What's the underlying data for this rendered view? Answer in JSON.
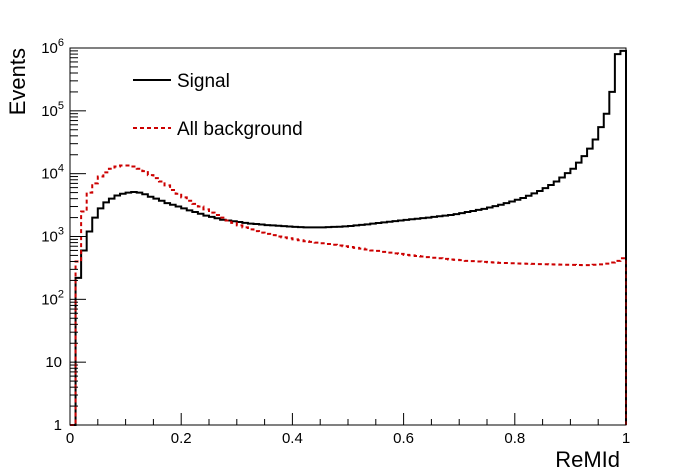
{
  "chart_data": {
    "type": "line",
    "xlabel": "ReMId",
    "ylabel": "Events",
    "xlim": [
      0,
      1
    ],
    "ylim": [
      1,
      1000000
    ],
    "yscale": "log",
    "grid": false,
    "legend_position": "top-left",
    "x_ticks": [
      {
        "v": 0,
        "label": "0"
      },
      {
        "v": 0.2,
        "label": "0.2"
      },
      {
        "v": 0.4,
        "label": "0.4"
      },
      {
        "v": 0.6,
        "label": "0.6"
      },
      {
        "v": 0.8,
        "label": "0.8"
      },
      {
        "v": 1,
        "label": "1"
      }
    ],
    "y_ticks": [
      {
        "v": 1,
        "base": "1",
        "exp": ""
      },
      {
        "v": 10,
        "base": "10",
        "exp": ""
      },
      {
        "v": 100,
        "base": "10",
        "exp": "2"
      },
      {
        "v": 1000,
        "base": "10",
        "exp": "3"
      },
      {
        "v": 10000,
        "base": "10",
        "exp": "4"
      },
      {
        "v": 100000,
        "base": "10",
        "exp": "5"
      },
      {
        "v": 1000000,
        "base": "10",
        "exp": "6"
      }
    ],
    "bin_width": 0.01,
    "series": [
      {
        "name": "Signal",
        "color": "#000000",
        "dash": "solid",
        "x": [
          0.0,
          0.01,
          0.02,
          0.03,
          0.04,
          0.05,
          0.06,
          0.07,
          0.08,
          0.09,
          0.1,
          0.11,
          0.12,
          0.13,
          0.14,
          0.15,
          0.16,
          0.17,
          0.18,
          0.19,
          0.2,
          0.21,
          0.22,
          0.23,
          0.24,
          0.25,
          0.26,
          0.27,
          0.28,
          0.29,
          0.3,
          0.31,
          0.32,
          0.33,
          0.34,
          0.35,
          0.36,
          0.37,
          0.38,
          0.39,
          0.4,
          0.41,
          0.42,
          0.43,
          0.44,
          0.45,
          0.46,
          0.47,
          0.48,
          0.49,
          0.5,
          0.51,
          0.52,
          0.53,
          0.54,
          0.55,
          0.56,
          0.57,
          0.58,
          0.59,
          0.6,
          0.61,
          0.62,
          0.63,
          0.64,
          0.65,
          0.66,
          0.67,
          0.68,
          0.69,
          0.7,
          0.71,
          0.72,
          0.73,
          0.74,
          0.75,
          0.76,
          0.77,
          0.78,
          0.79,
          0.8,
          0.81,
          0.82,
          0.83,
          0.84,
          0.85,
          0.86,
          0.87,
          0.88,
          0.89,
          0.9,
          0.91,
          0.92,
          0.93,
          0.94,
          0.95,
          0.96,
          0.97,
          0.98,
          0.99
        ],
        "values": [
          1,
          220,
          600,
          1200,
          2000,
          2800,
          3500,
          4000,
          4500,
          4800,
          5000,
          5100,
          5000,
          4700,
          4300,
          4000,
          3700,
          3400,
          3200,
          3000,
          2800,
          2600,
          2450,
          2300,
          2150,
          2050,
          1950,
          1850,
          1800,
          1750,
          1700,
          1650,
          1600,
          1580,
          1550,
          1520,
          1500,
          1480,
          1460,
          1440,
          1420,
          1410,
          1400,
          1400,
          1400,
          1400,
          1410,
          1420,
          1430,
          1450,
          1470,
          1500,
          1530,
          1560,
          1600,
          1640,
          1680,
          1720,
          1760,
          1800,
          1840,
          1880,
          1920,
          1960,
          2000,
          2050,
          2100,
          2150,
          2200,
          2270,
          2350,
          2450,
          2550,
          2650,
          2750,
          2900,
          3050,
          3200,
          3400,
          3600,
          3850,
          4100,
          4450,
          4850,
          5300,
          5900,
          6600,
          7500,
          8700,
          10200,
          12000,
          15000,
          19000,
          25000,
          35000,
          55000,
          90000,
          200000,
          800000,
          900000
        ]
      },
      {
        "name": "All background",
        "color": "#cc0000",
        "dash": "dashed",
        "x": [
          0.0,
          0.01,
          0.02,
          0.03,
          0.04,
          0.05,
          0.06,
          0.07,
          0.08,
          0.09,
          0.1,
          0.11,
          0.12,
          0.13,
          0.14,
          0.15,
          0.16,
          0.17,
          0.18,
          0.19,
          0.2,
          0.21,
          0.22,
          0.23,
          0.24,
          0.25,
          0.26,
          0.27,
          0.28,
          0.29,
          0.3,
          0.31,
          0.32,
          0.33,
          0.34,
          0.35,
          0.36,
          0.37,
          0.38,
          0.39,
          0.4,
          0.41,
          0.42,
          0.43,
          0.44,
          0.45,
          0.46,
          0.47,
          0.48,
          0.49,
          0.5,
          0.51,
          0.52,
          0.53,
          0.54,
          0.55,
          0.56,
          0.57,
          0.58,
          0.59,
          0.6,
          0.61,
          0.62,
          0.63,
          0.64,
          0.65,
          0.66,
          0.67,
          0.68,
          0.69,
          0.7,
          0.71,
          0.72,
          0.73,
          0.74,
          0.75,
          0.76,
          0.77,
          0.78,
          0.79,
          0.8,
          0.81,
          0.82,
          0.83,
          0.84,
          0.85,
          0.86,
          0.87,
          0.88,
          0.89,
          0.9,
          0.91,
          0.92,
          0.93,
          0.94,
          0.95,
          0.96,
          0.97,
          0.98,
          0.99
        ],
        "values": [
          1,
          400,
          2500,
          5000,
          7000,
          9000,
          10500,
          12000,
          13000,
          13500,
          13500,
          13000,
          12000,
          11000,
          9500,
          8500,
          7500,
          6500,
          5500,
          4800,
          4200,
          3700,
          3300,
          3000,
          2700,
          2400,
          2200,
          2000,
          1800,
          1650,
          1500,
          1400,
          1300,
          1220,
          1150,
          1100,
          1050,
          1000,
          970,
          940,
          900,
          870,
          840,
          820,
          800,
          780,
          760,
          740,
          720,
          700,
          680,
          660,
          640,
          620,
          600,
          590,
          570,
          555,
          540,
          530,
          510,
          500,
          490,
          480,
          470,
          460,
          450,
          440,
          430,
          425,
          420,
          410,
          405,
          400,
          395,
          390,
          385,
          380,
          378,
          375,
          372,
          370,
          368,
          366,
          364,
          362,
          360,
          358,
          356,
          355,
          354,
          352,
          350,
          350,
          355,
          360,
          370,
          385,
          410,
          450
        ]
      }
    ]
  }
}
